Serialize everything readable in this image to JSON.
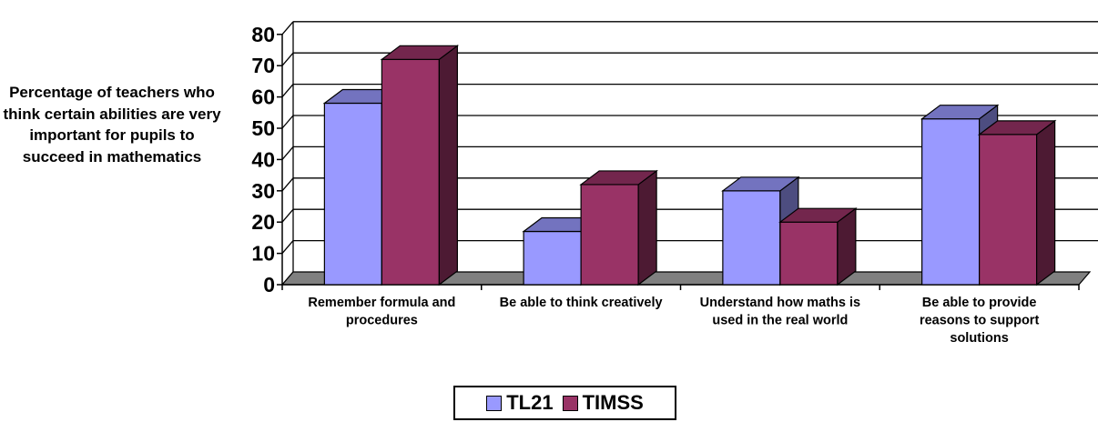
{
  "chart_data": {
    "type": "bar",
    "title": "",
    "xlabel": "",
    "ylabel": "Percentage of teachers who think certain abilities are very important for pupils to succeed in mathematics",
    "ylim": [
      0,
      80
    ],
    "yticks": [
      "0",
      "10",
      "20",
      "30",
      "40",
      "50",
      "60",
      "70",
      "80"
    ],
    "categories": [
      [
        "Remember formula and",
        "procedures"
      ],
      [
        "Be able to think creatively"
      ],
      [
        "Understand how maths is",
        "used in the real world"
      ],
      [
        "Be able to provide",
        "reasons to support",
        "solutions"
      ]
    ],
    "series": [
      {
        "name": "TL21",
        "values": [
          58,
          17,
          30,
          53
        ]
      },
      {
        "name": "TIMSS",
        "values": [
          72,
          32,
          20,
          48
        ]
      }
    ],
    "colors": {
      "TL21": {
        "front": "#9999ff",
        "side": "#4d4d80",
        "top": "#7373bf"
      },
      "TIMSS": {
        "front": "#993366",
        "side": "#4d1a33",
        "top": "#73264d"
      },
      "floor": "#808080"
    },
    "grid": true,
    "legend": "bottom-center"
  }
}
